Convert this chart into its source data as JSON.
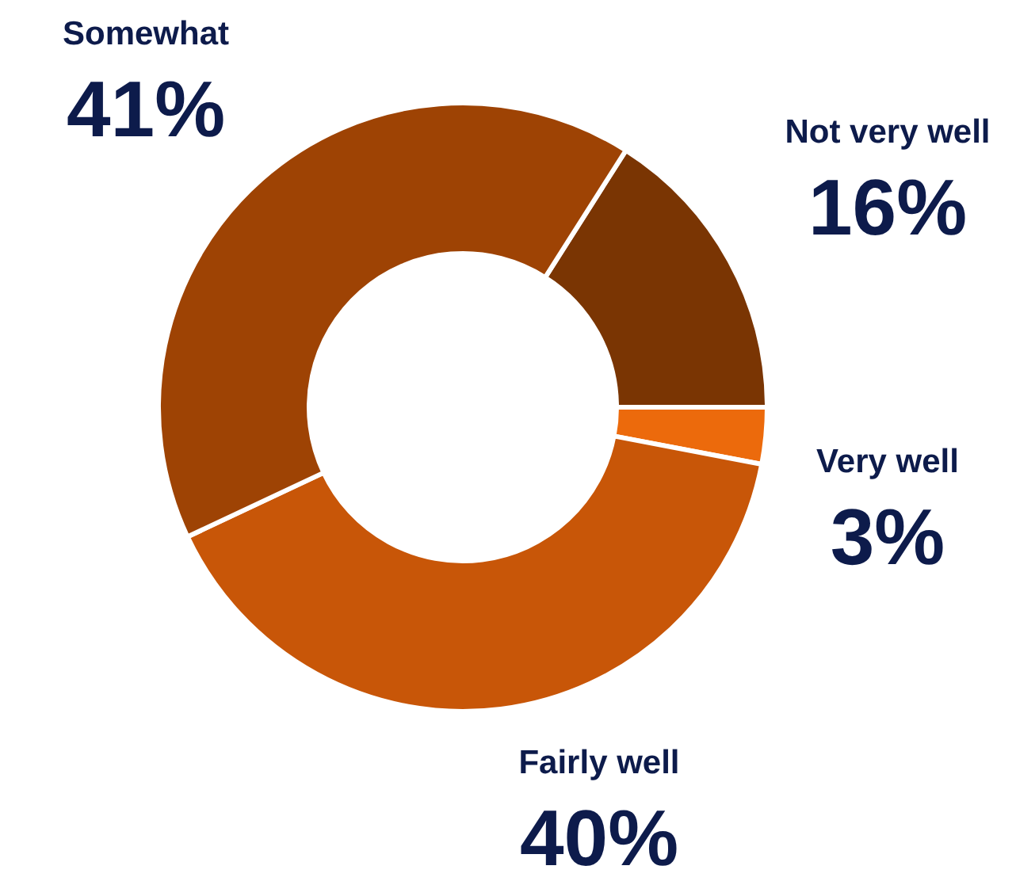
{
  "chart_data": {
    "type": "donut",
    "categories": [
      "Not very well",
      "Very well",
      "Fairly well",
      "Somewhat"
    ],
    "values": [
      16,
      3,
      40,
      41
    ],
    "colors": [
      "#7a3503",
      "#ec6a0c",
      "#c85608",
      "#9e4304"
    ],
    "value_labels": [
      "16%",
      "3%",
      "40%",
      "41%"
    ]
  }
}
